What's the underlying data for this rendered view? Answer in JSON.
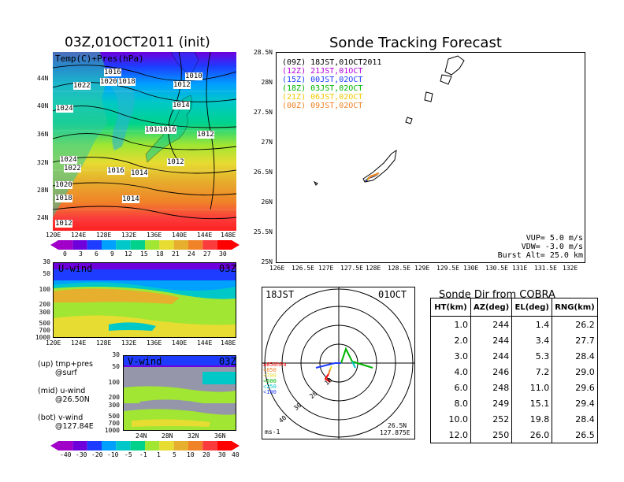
{
  "left": {
    "title": "03Z,01OCT2011 (init)",
    "top_panel": {
      "label": "Temp(C)+Pres(hPa)",
      "lat_ticks": [
        "44N",
        "40N",
        "36N",
        "32N",
        "28N",
        "24N"
      ],
      "lon_ticks": [
        "120E",
        "124E",
        "128E",
        "132E",
        "136E",
        "140E",
        "144E",
        "148E"
      ],
      "isobar_labels": [
        "1016",
        "1010",
        "1022",
        "1020",
        "1018",
        "1012",
        "1024",
        "1014",
        "1018",
        "1016",
        "1012",
        "1024",
        "1022",
        "1016",
        "1014",
        "1012",
        "1020",
        "1018",
        "1014",
        "1012"
      ],
      "colorbar_ticks": [
        "0",
        "3",
        "6",
        "9",
        "12",
        "15",
        "18",
        "21",
        "24",
        "27",
        "30"
      ],
      "colorbar_colors": [
        "#a000c8",
        "#6e00dc",
        "#1e3cff",
        "#00a0ff",
        "#00c8c8",
        "#00d28c",
        "#a0e632",
        "#e6dc32",
        "#e6af2d",
        "#f08228",
        "#fa3c3c",
        "#ff0000"
      ]
    },
    "u_panel": {
      "label": "U-wind",
      "time": "03Z",
      "p_ticks": [
        "30",
        "50",
        "100",
        "200",
        "300",
        "500",
        "700",
        "1000"
      ],
      "lon_ticks": [
        "120E",
        "124E",
        "128E",
        "132E",
        "136E",
        "140E",
        "144E",
        "148E"
      ]
    },
    "v_panel": {
      "label": "V-wind",
      "time": "03Z",
      "p_ticks": [
        "30",
        "50",
        "100",
        "200",
        "300",
        "500",
        "700",
        "1000"
      ],
      "lat_ticks": [
        "24N",
        "28N",
        "32N",
        "36N"
      ]
    },
    "notes": [
      {
        "line1": "(up) tmp+pres",
        "line2": "@surf"
      },
      {
        "line1": "(mid) u-wind",
        "line2": "@26.50N"
      },
      {
        "line1": "(bot) v-wind",
        "line2": "@127.84E"
      }
    ],
    "wind_colorbar_ticks": [
      "-40",
      "-30",
      "-20",
      "-10",
      "-5",
      "-1",
      "1",
      "5",
      "10",
      "20",
      "30",
      "40"
    ],
    "wind_colorbar_colors": [
      "#a000c8",
      "#6e00dc",
      "#1e3cff",
      "#00a0ff",
      "#00c8c8",
      "#00d28c",
      "#a0e632",
      "#e6dc32",
      "#e6af2d",
      "#f08228",
      "#fa3c3c",
      "#ff0000"
    ]
  },
  "track": {
    "title": "Sonde Tracking Forecast",
    "lat_ticks": [
      "28.5N",
      "28N",
      "27.5N",
      "27N",
      "26.5N",
      "26N",
      "25.5N",
      "25N"
    ],
    "lon_ticks": [
      "126E",
      "126.5E",
      "127E",
      "127.5E",
      "128E",
      "128.5E",
      "129E",
      "129.5E",
      "130E",
      "130.5E",
      "131E",
      "131.5E",
      "132E"
    ],
    "legend": [
      {
        "code": "(09Z)",
        "time": "18JST,01OCT2011",
        "color": "#000000"
      },
      {
        "code": "(12Z)",
        "time": "21JST,01OCT",
        "color": "#b400dc"
      },
      {
        "code": "(15Z)",
        "time": "00JST,02OCT",
        "color": "#1e3cff"
      },
      {
        "code": "(18Z)",
        "time": "03JST,02OCT",
        "color": "#00b400"
      },
      {
        "code": "(21Z)",
        "time": "06JST,02OCT",
        "color": "#f0c800"
      },
      {
        "code": "(00Z)",
        "time": "09JST,02OCT",
        "color": "#f08228"
      }
    ],
    "params": [
      "VUP=  5.0 m/s",
      "VDW= -3.0 m/s",
      "Burst Alt= 25.0 km"
    ]
  },
  "polar": {
    "time": "18JST",
    "date": "01OCT",
    "ring_labels": [
      "10",
      "20",
      "30",
      "40"
    ],
    "height_legend": [
      {
        "label": "≥850hPa",
        "color": "#ff0000"
      },
      {
        "label": "<850",
        "color": "#f08228"
      },
      {
        "label": "<700",
        "color": "#e6dc32"
      },
      {
        "label": "<500",
        "color": "#00b400"
      },
      {
        "label": "<250",
        "color": "#00c8c8"
      },
      {
        "label": "<100",
        "color": "#1e3cff"
      }
    ],
    "location_lat": "26.5N",
    "location_lon": "127.875E",
    "unit": "ms-1"
  },
  "cobra": {
    "title": "Sonde Dir from COBRA",
    "headers": [
      "HT(km)",
      "AZ(deg)",
      "EL(deg)",
      "RNG(km)"
    ],
    "rows": [
      [
        "1.0",
        "244",
        "1.4",
        "26.2"
      ],
      [
        "2.0",
        "244",
        "3.4",
        "27.7"
      ],
      [
        "3.0",
        "244",
        "5.3",
        "28.4"
      ],
      [
        "4.0",
        "246",
        "7.2",
        "29.0"
      ],
      [
        "6.0",
        "248",
        "11.0",
        "29.6"
      ],
      [
        "8.0",
        "249",
        "15.1",
        "29.4"
      ],
      [
        "10.0",
        "252",
        "19.8",
        "28.4"
      ],
      [
        "12.0",
        "250",
        "26.0",
        "26.5"
      ]
    ]
  }
}
